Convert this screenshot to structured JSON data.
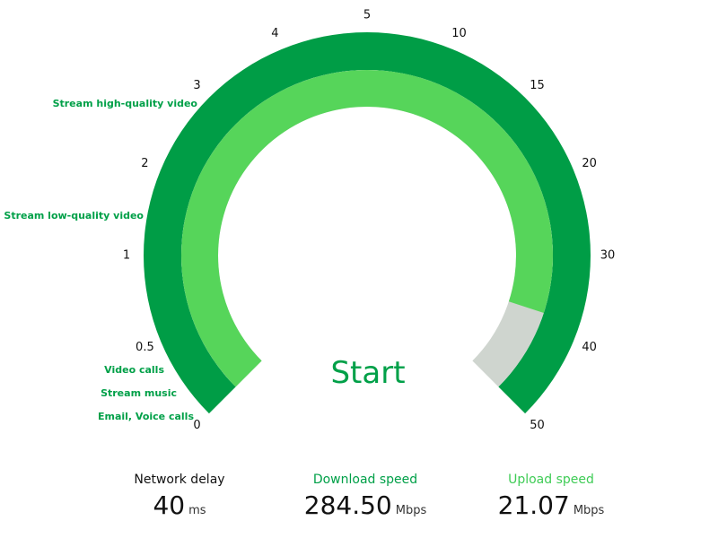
{
  "gauge": {
    "ticks": [
      "0",
      "0.5",
      "1",
      "2",
      "3",
      "4",
      "5",
      "10",
      "15",
      "20",
      "30",
      "40",
      "50"
    ],
    "usage_labels": [
      "Email, Voice calls",
      "Stream music",
      "Video calls",
      "Stream low-quality video",
      "Stream high-quality video"
    ],
    "fill_fraction": 0.9,
    "colors": {
      "outer": "#009d46",
      "inner": "#56d55a",
      "remaining": "#cfd5cf",
      "accent": "#00a048",
      "upload": "#3fcc56"
    }
  },
  "start_button": {
    "label": "Start"
  },
  "stats": {
    "network_delay": {
      "label": "Network delay",
      "value": "40",
      "unit": "ms"
    },
    "download": {
      "label": "Download speed",
      "value": "284.50",
      "unit": "Mbps"
    },
    "upload": {
      "label": "Upload speed",
      "value": "21.07",
      "unit": "Mbps"
    }
  }
}
